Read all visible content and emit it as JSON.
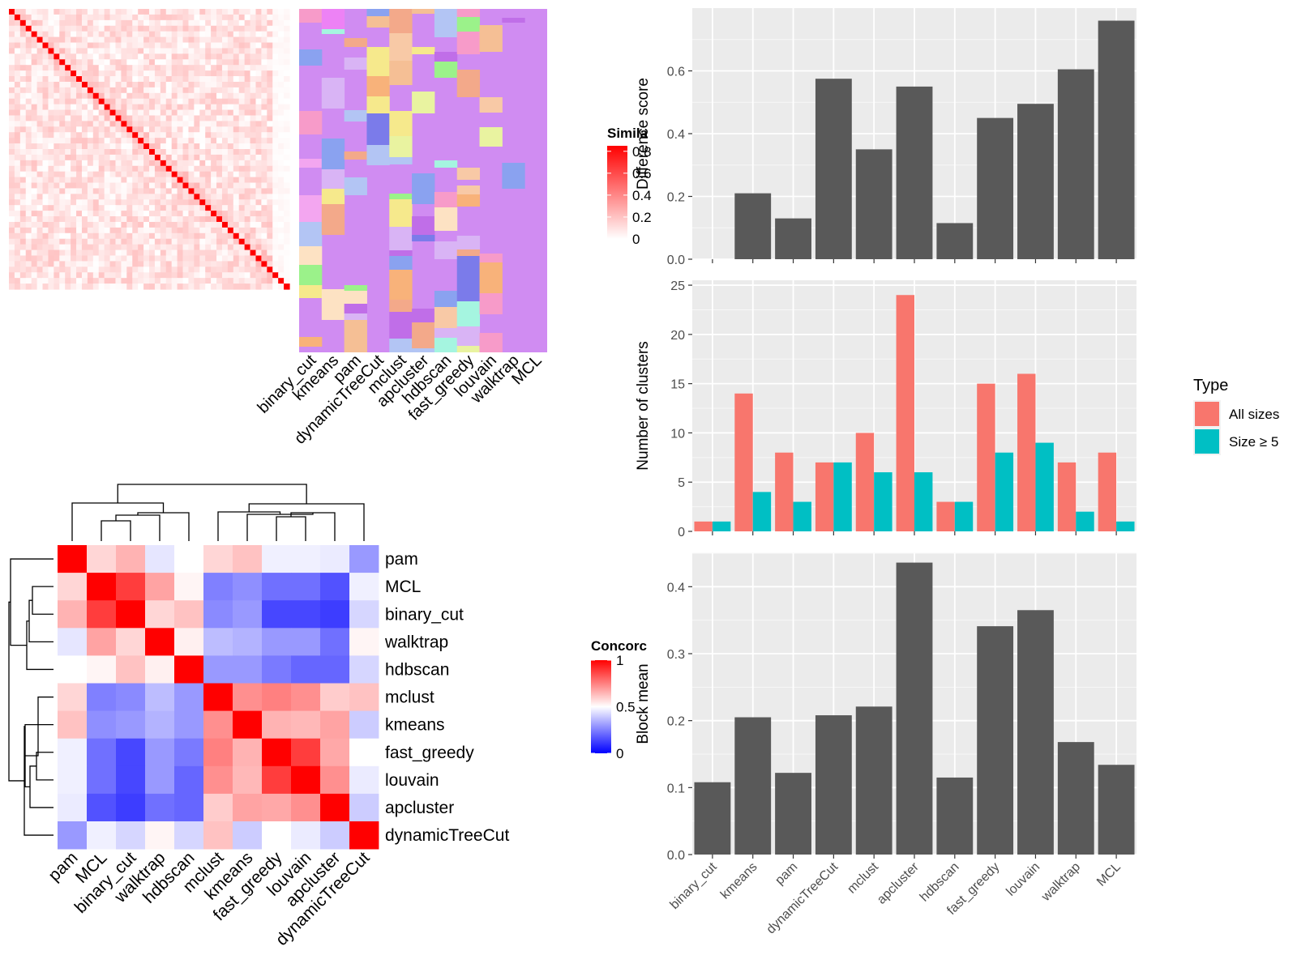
{
  "colors": {
    "panel_bg": "#ebebeb",
    "grid_major": "#ffffff",
    "bar_fill": "#595959",
    "all_sizes": "#f8766d",
    "size_ge5": "#00bfc4",
    "heat_low": "#ffffff",
    "heat_high": "#ff0000",
    "conc_low": "#0000ff",
    "conc_mid": "#ffffff",
    "conc_high": "#ff0000",
    "cluster_base": "#d08cf2"
  },
  "methods_bar": [
    "binary_cut",
    "kmeans",
    "pam",
    "dynamicTreeCut",
    "mclust",
    "apcluster",
    "hdbscan",
    "fast_greedy",
    "louvain",
    "walktrap",
    "MCL"
  ],
  "methods_top_heatmap": [
    "binary_cut",
    "kmeans",
    "pam",
    "dynamicTreeCut",
    "mclust",
    "apcluster",
    "hdbscan",
    "fast_greedy",
    "louvain",
    "walktrap",
    "MCL"
  ],
  "similarity_legend": {
    "title": "Simila",
    "ticks": [
      "0.8",
      "0.6",
      "0.4",
      "0.2",
      "0"
    ],
    "tick_values": [
      0.8,
      0.6,
      0.4,
      0.2,
      0
    ]
  },
  "concordance_legend": {
    "title": "Concorc",
    "ticks": [
      "1",
      "0.5",
      "0"
    ],
    "tick_values": [
      1,
      0.5,
      0
    ]
  },
  "chart_data": [
    {
      "type": "heatmap",
      "name": "similarity-heatmap",
      "n": 50,
      "diagonal_value": 0.85,
      "off_diagonal_range": [
        0.0,
        0.2
      ]
    },
    {
      "type": "heatmap",
      "name": "cluster-assignment-heatmap",
      "columns": [
        "binary_cut",
        "kmeans",
        "pam",
        "dynamicTreeCut",
        "mclust",
        "apcluster",
        "hdbscan",
        "fast_greedy",
        "louvain",
        "walktrap",
        "MCL"
      ]
    },
    {
      "type": "heatmap",
      "name": "concordance-heatmap",
      "rows": [
        "pam",
        "MCL",
        "binary_cut",
        "walktrap",
        "hdbscan",
        "mclust",
        "kmeans",
        "fast_greedy",
        "louvain",
        "apcluster",
        "dynamicTreeCut"
      ],
      "columns": [
        "pam",
        "MCL",
        "binary_cut",
        "walktrap",
        "hdbscan",
        "mclust",
        "kmeans",
        "fast_greedy",
        "louvain",
        "apcluster",
        "dynamicTreeCut"
      ],
      "values": [
        [
          1.0,
          0.58,
          0.65,
          0.45,
          0.5,
          0.58,
          0.62,
          0.47,
          0.47,
          0.46,
          0.3
        ],
        [
          0.58,
          1.0,
          0.88,
          0.68,
          0.52,
          0.25,
          0.28,
          0.22,
          0.22,
          0.16,
          0.47
        ],
        [
          0.65,
          0.88,
          1.0,
          0.58,
          0.62,
          0.27,
          0.3,
          0.14,
          0.14,
          0.12,
          0.42
        ],
        [
          0.45,
          0.68,
          0.58,
          1.0,
          0.53,
          0.37,
          0.35,
          0.3,
          0.3,
          0.22,
          0.52
        ],
        [
          0.5,
          0.52,
          0.62,
          0.53,
          1.0,
          0.3,
          0.3,
          0.24,
          0.2,
          0.2,
          0.42
        ],
        [
          0.58,
          0.25,
          0.27,
          0.37,
          0.3,
          1.0,
          0.72,
          0.75,
          0.72,
          0.6,
          0.62
        ],
        [
          0.62,
          0.28,
          0.3,
          0.35,
          0.3,
          0.72,
          1.0,
          0.65,
          0.64,
          0.68,
          0.4
        ],
        [
          0.47,
          0.22,
          0.14,
          0.3,
          0.24,
          0.75,
          0.65,
          1.0,
          0.88,
          0.67,
          0.5
        ],
        [
          0.47,
          0.22,
          0.14,
          0.3,
          0.2,
          0.72,
          0.64,
          0.88,
          1.0,
          0.72,
          0.46
        ],
        [
          0.46,
          0.16,
          0.12,
          0.22,
          0.2,
          0.6,
          0.68,
          0.67,
          0.72,
          1.0,
          0.4
        ],
        [
          0.3,
          0.47,
          0.42,
          0.52,
          0.42,
          0.62,
          0.4,
          0.5,
          0.46,
          0.4,
          1.0
        ]
      ],
      "scale": [
        0,
        1
      ]
    },
    {
      "type": "bar",
      "name": "difference-score",
      "categories": [
        "binary_cut",
        "kmeans",
        "pam",
        "dynamicTreeCut",
        "mclust",
        "apcluster",
        "hdbscan",
        "fast_greedy",
        "louvain",
        "walktrap",
        "MCL"
      ],
      "values": [
        0.0,
        0.21,
        0.13,
        0.575,
        0.35,
        0.55,
        0.115,
        0.45,
        0.495,
        0.605,
        0.76
      ],
      "ylabel": "Difference score",
      "ylim": [
        0,
        0.8
      ],
      "yticks": [
        0.0,
        0.2,
        0.4,
        0.6
      ],
      "ytick_labels": [
        "0.0",
        "0.2",
        "0.4",
        "0.6"
      ],
      "grid": true
    },
    {
      "type": "bar",
      "name": "number-of-clusters",
      "categories": [
        "binary_cut",
        "kmeans",
        "pam",
        "dynamicTreeCut",
        "mclust",
        "apcluster",
        "hdbscan",
        "fast_greedy",
        "louvain",
        "walktrap",
        "MCL"
      ],
      "series": [
        {
          "name": "All sizes",
          "values": [
            1,
            14,
            8,
            7,
            10,
            24,
            3,
            15,
            16,
            7,
            8
          ]
        },
        {
          "name": "Size ≥ 5",
          "values": [
            1,
            4,
            3,
            7,
            6,
            6,
            3,
            8,
            9,
            2,
            1
          ]
        }
      ],
      "ylabel": "Number of clusters",
      "ylim": [
        0,
        25.5
      ],
      "yticks": [
        0,
        5,
        10,
        15,
        20,
        25
      ],
      "ytick_labels": [
        "0",
        "5",
        "10",
        "15",
        "20",
        "25"
      ],
      "legend": {
        "title": "Type",
        "placement": "right"
      },
      "grid": true
    },
    {
      "type": "bar",
      "name": "block-mean",
      "categories": [
        "binary_cut",
        "kmeans",
        "pam",
        "dynamicTreeCut",
        "mclust",
        "apcluster",
        "hdbscan",
        "fast_greedy",
        "louvain",
        "walktrap",
        "MCL"
      ],
      "values": [
        0.108,
        0.205,
        0.122,
        0.208,
        0.221,
        0.436,
        0.115,
        0.341,
        0.365,
        0.168,
        0.134
      ],
      "ylabel": "Block mean",
      "ylim": [
        0,
        0.45
      ],
      "yticks": [
        0.0,
        0.1,
        0.2,
        0.3,
        0.4
      ],
      "ytick_labels": [
        "0.0",
        "0.1",
        "0.2",
        "0.3",
        "0.4"
      ],
      "grid": true
    }
  ]
}
